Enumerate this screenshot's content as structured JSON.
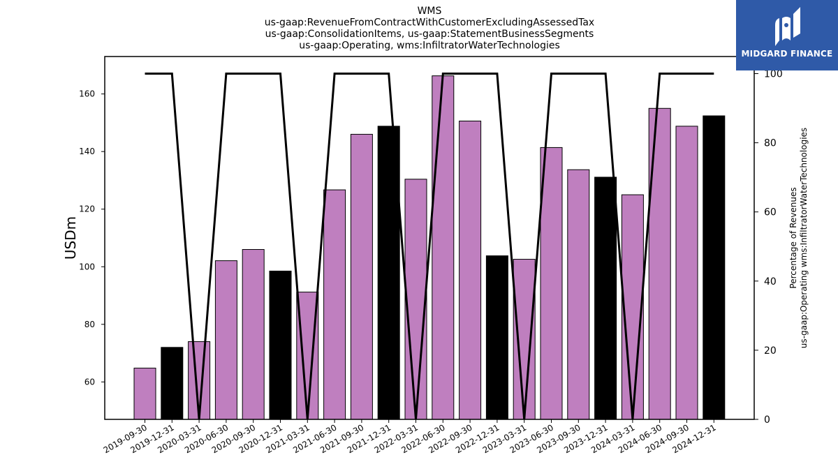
{
  "chart_data": {
    "type": "bar",
    "title_lines": [
      "WMS",
      "us-gaap:RevenueFromContractWithCustomerExcludingAssessedTax",
      "us-gaap:ConsolidationItems, us-gaap:StatementBusinessSegments",
      "us-gaap:Operating, wms:InfiltratorWaterTechnologies"
    ],
    "ylabel": "USDm",
    "ylabel_right": [
      "Percentage of Revenues",
      "us-gaap:Operating wms:InfiltratorWaterTechnologies"
    ],
    "ylim": [
      47,
      173
    ],
    "ylim_right": [
      0,
      100
    ],
    "yticks": [
      60,
      80,
      100,
      120,
      140,
      160
    ],
    "yticks_right": [
      0,
      20,
      40,
      60,
      80,
      100
    ],
    "categories": [
      "2019-09-30",
      "2019-12-31",
      "2020-03-31",
      "2020-06-30",
      "2020-09-30",
      "2020-12-31",
      "2021-03-31",
      "2021-06-30",
      "2021-09-30",
      "2021-12-31",
      "2022-03-31",
      "2022-06-30",
      "2022-09-30",
      "2022-12-31",
      "2023-03-31",
      "2023-06-30",
      "2023-09-30",
      "2023-12-31",
      "2024-03-31",
      "2024-06-30",
      "2024-09-30",
      "2024-12-31"
    ],
    "series": [
      {
        "values": [
          64.8,
          72.0,
          74.0,
          102.1,
          106.0,
          98.5,
          91.2,
          126.7,
          146.0,
          148.8,
          130.4,
          166.3,
          150.6,
          103.8,
          102.6,
          141.4,
          133.7,
          131.1,
          125.0,
          155.0,
          148.8,
          152.4
        ]
      },
      {
        "axis": "right",
        "type": "line",
        "values": [
          100,
          100,
          0,
          100,
          100,
          100,
          0,
          100,
          100,
          100,
          0,
          100,
          100,
          100,
          0,
          100,
          100,
          100,
          0,
          100,
          100,
          100
        ]
      }
    ],
    "bar_colors": [
      "#bf7fbf",
      "#000000",
      "#bf7fbf",
      "#bf7fbf",
      "#bf7fbf",
      "#000000",
      "#bf7fbf",
      "#bf7fbf",
      "#bf7fbf",
      "#000000",
      "#bf7fbf",
      "#bf7fbf",
      "#bf7fbf",
      "#000000",
      "#bf7fbf",
      "#bf7fbf",
      "#bf7fbf",
      "#000000",
      "#bf7fbf",
      "#bf7fbf",
      "#bf7fbf",
      "#000000"
    ],
    "line_color": "#000000",
    "grid": false
  },
  "logo": {
    "text": "MIDGARD FINANCE",
    "background": "#2f5aa8"
  }
}
